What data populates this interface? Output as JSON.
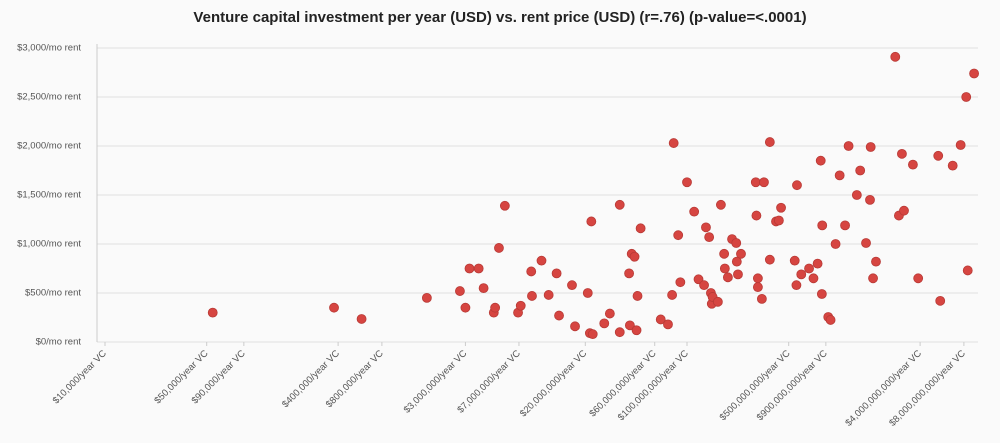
{
  "chart_data": {
    "type": "scatter",
    "title": "Venture capital investment per year (USD) vs. rent price (USD) (r=.76) (p-value=<.0001)",
    "x": [
      55000,
      375000,
      580000,
      1630000,
      2750000,
      3000000,
      3200000,
      3700000,
      4000000,
      4700000,
      4800000,
      5100000,
      5600000,
      6900000,
      7200000,
      8600000,
      8500000,
      10000000,
      11200000,
      12700000,
      13200000,
      16200000,
      17000000,
      20800000,
      22000000,
      21500000,
      22500000,
      27000000,
      29500000,
      34500000,
      34500000,
      40000000,
      40500000,
      41700000,
      43600000,
      45700000,
      45000000,
      48000000,
      66000000,
      74000000,
      81000000,
      79000000,
      87000000,
      90000000,
      100000000,
      112000000,
      120000000,
      131000000,
      135000000,
      142000000,
      146000000,
      148000000,
      150000000,
      163000000,
      171000000,
      180000000,
      182000000,
      191000000,
      204000000,
      218000000,
      220000000,
      224000000,
      235000000,
      297000000,
      300000000,
      307000000,
      307000000,
      327000000,
      338000000,
      371000000,
      371000000,
      409000000,
      428000000,
      443000000,
      550000000,
      570000000,
      565000000,
      610000000,
      690000000,
      740000000,
      790000000,
      830000000,
      845000000,
      850000000,
      935000000,
      970000000,
      1050000000,
      1120000000,
      1220000000,
      1290000000,
      1470000000,
      1550000000,
      1700000000,
      1810000000,
      1830000000,
      1900000000,
      1990000000,
      2700000000,
      2860000000,
      3000000000,
      3100000000,
      3570000000,
      3880000000,
      5330000000,
      5500000000,
      6700000000,
      7600000000,
      8300000000,
      8500000000,
      9400000000
    ],
    "values": [
      300,
      350,
      235,
      450,
      520,
      350,
      750,
      750,
      550,
      300,
      350,
      960,
      1390,
      300,
      370,
      470,
      720,
      830,
      480,
      700,
      270,
      580,
      160,
      500,
      1230,
      90,
      80,
      190,
      290,
      1400,
      100,
      700,
      170,
      900,
      870,
      470,
      120,
      1160,
      230,
      180,
      2030,
      480,
      1090,
      610,
      1630,
      1330,
      640,
      580,
      1170,
      1070,
      500,
      390,
      460,
      410,
      1400,
      900,
      750,
      660,
      1050,
      1010,
      820,
      690,
      900,
      1630,
      1290,
      650,
      560,
      440,
      1630,
      840,
      2040,
      1230,
      1240,
      1370,
      830,
      1600,
      580,
      690,
      750,
      650,
      800,
      1850,
      490,
      1190,
      255,
      225,
      1000,
      1700,
      1190,
      2000,
      1500,
      1750,
      1010,
      1450,
      1990,
      650,
      820,
      2910,
      1290,
      1920,
      1340,
      1810,
      650,
      1900,
      420,
      1800,
      2010,
      2500,
      730,
      2740
    ],
    "color": "#d64541",
    "xscale": "log",
    "xlim": [
      10000,
      10000000000
    ],
    "xticks": [
      {
        "value": 10000,
        "label": "$10,000/year VC"
      },
      {
        "value": 50000,
        "label": "$50,000/year VC"
      },
      {
        "value": 90000,
        "label": "$90,000/year VC"
      },
      {
        "value": 400000,
        "label": "$400,000/year VC"
      },
      {
        "value": 800000,
        "label": "$800,000/year VC"
      },
      {
        "value": 3000000,
        "label": "$3,000,000/year VC"
      },
      {
        "value": 7000000,
        "label": "$7,000,000/year VC"
      },
      {
        "value": 20000000,
        "label": "$20,000,000/year VC"
      },
      {
        "value": 60000000,
        "label": "$60,000,000/year VC"
      },
      {
        "value": 100000000,
        "label": "$100,000,000/year VC"
      },
      {
        "value": 500000000,
        "label": "$500,000,000/year VC"
      },
      {
        "value": 900000000,
        "label": "$900,000,000/year VC"
      },
      {
        "value": 4000000000,
        "label": "$4,000,000,000/year VC"
      },
      {
        "value": 8000000000,
        "label": "$8,000,000,000/year VC"
      }
    ],
    "ylim": [
      0,
      3000
    ],
    "yticks": [
      {
        "value": 0,
        "label": "$0/mo rent"
      },
      {
        "value": 500,
        "label": "$500/mo rent"
      },
      {
        "value": 1000,
        "label": "$1,000/mo rent"
      },
      {
        "value": 1500,
        "label": "$1,500/mo rent"
      },
      {
        "value": 2000,
        "label": "$2,000/mo rent"
      },
      {
        "value": 2500,
        "label": "$2,500/mo rent"
      },
      {
        "value": 3000,
        "label": "$3,000/mo rent"
      }
    ],
    "grid": true
  }
}
